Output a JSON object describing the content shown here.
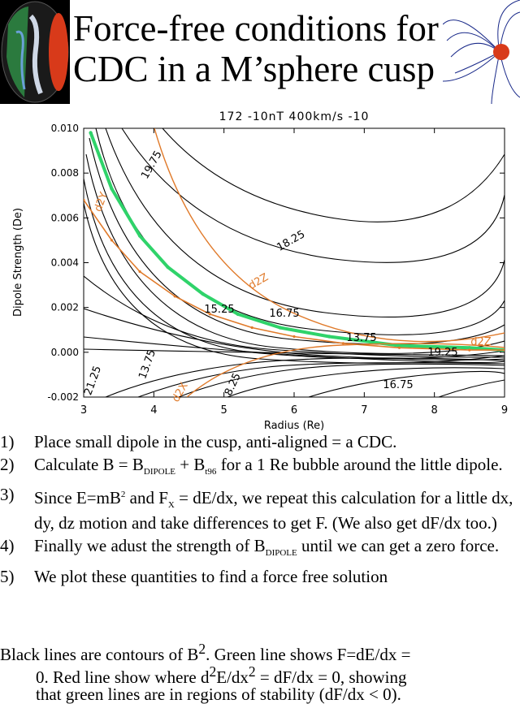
{
  "title": "Force-free conditions for\nCDC in a M’sphere cusp",
  "chart_data": {
    "type": "line",
    "title": "172 -10nT 400km/s -10",
    "xlabel": "Radius (Re)",
    "ylabel": "Dipole Strength (De)",
    "xlim": [
      3,
      9
    ],
    "ylim": [
      -0.002,
      0.01
    ],
    "xticks": [
      "3",
      "4",
      "5",
      "6",
      "7",
      "8",
      "9"
    ],
    "yticks": [
      "-0.002",
      "0.000",
      "0.002",
      "0.004",
      "0.006",
      "0.008",
      "0.010"
    ],
    "contour_labels": [
      "19.75",
      "18.25",
      "16.75",
      "15.25",
      "13.75",
      "19.25",
      "16.75",
      "21.25",
      "13.75",
      "8.25",
      "d2Z",
      "d2Y",
      "d2X",
      "d2Z"
    ],
    "series": [
      {
        "name": "F=dE/dx (green)",
        "x": [
          3.1,
          3.4,
          3.8,
          4.2,
          4.7,
          5.2,
          5.8,
          6.5,
          7.5,
          8.5,
          9.0
        ],
        "y": [
          0.0098,
          0.0073,
          0.0052,
          0.0038,
          0.0026,
          0.0017,
          0.0011,
          0.0007,
          0.0003,
          0.0002,
          0.0001
        ]
      },
      {
        "name": "dF/dx = 0 (red)",
        "x": [
          3.0,
          3.4,
          3.8,
          4.3,
          4.8,
          5.4,
          6.0,
          6.7,
          7.5,
          8.5,
          9.0
        ],
        "y": [
          0.0068,
          0.005,
          0.0036,
          0.0025,
          0.0017,
          0.0011,
          0.0007,
          0.0004,
          0.0002,
          0.0001,
          0.0001
        ]
      }
    ]
  },
  "steps": [
    {
      "num": "1)",
      "parts": [
        "Place small dipole in the cusp, anti-aligned = a CDC."
      ]
    },
    {
      "num": "2)",
      "parts": [
        "Calculate B = B",
        "DIPOLE",
        " + B",
        "t96",
        " for a 1 Re bubble around the little dipole."
      ]
    },
    {
      "num": "3)",
      "parts": [
        "Since E=mB",
        "2",
        " and F",
        "X",
        " = dE/dx, we repeat this calculation for a little dx, dy, dz motion and take differences to get F. (We also get dF/dx too.)"
      ]
    },
    {
      "num": "4)",
      "parts": [
        "Finally we adust the strength of B",
        "DIPOLE",
        "  until we can get a zero force."
      ]
    },
    {
      "num": "5)",
      "parts": [
        "We plot these quantities to find a force free solution"
      ]
    }
  ],
  "summary": {
    "a": "Black lines are contours of B",
    "a_sup": "2",
    "b": ". Green line shows F=dE/dx =",
    "c": "0. Red line show where d",
    "c_sup": "2",
    "d": "E/dx",
    "d_sup": "2",
    "e": " = dF/dx = 0, showing",
    "f": "that green lines are in regions of stability (dF/dx < 0)."
  }
}
